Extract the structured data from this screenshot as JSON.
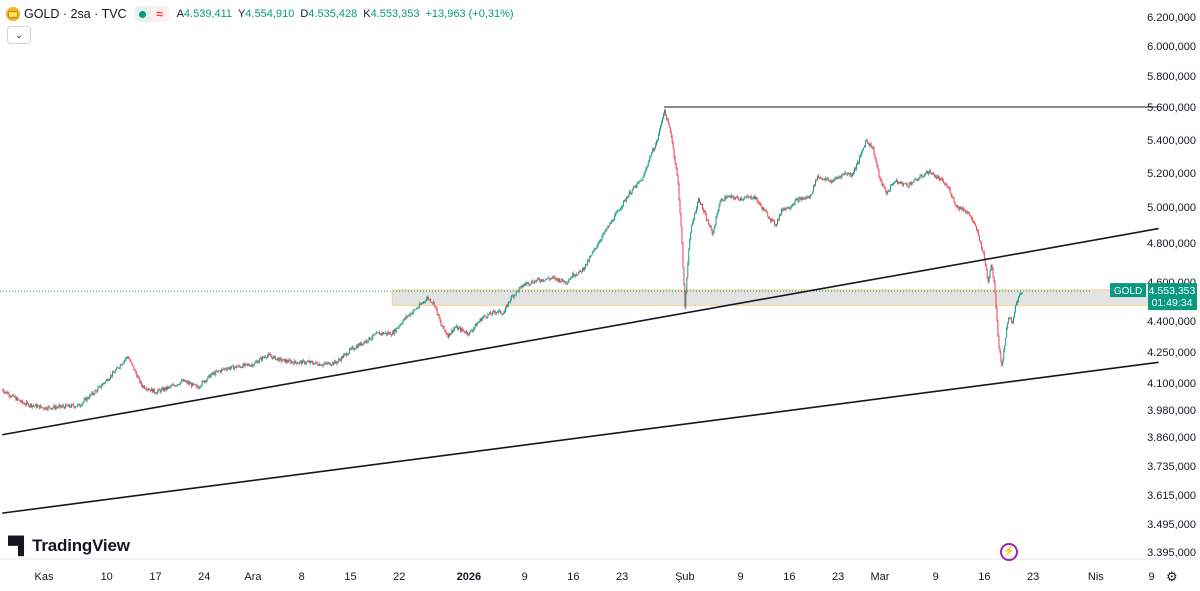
{
  "header": {
    "symbol": "GOLD",
    "interval": "2sa",
    "source": "TVC",
    "title": "GOLD · 2sa · TVC",
    "ohlc": [
      {
        "key": "A",
        "value": "4.539,411"
      },
      {
        "key": "Y",
        "value": "4.554,910"
      },
      {
        "key": "D",
        "value": "4.535,428"
      },
      {
        "key": "K",
        "value": "4.553,353"
      }
    ],
    "change": "+13,963 (+0,31%)"
  },
  "price_label": {
    "symbol": "GOLD",
    "price": "4.553,353",
    "countdown": "01:49:34"
  },
  "logo_text": "TradingView",
  "colors": {
    "up": "#089981",
    "down": "#f23645",
    "zone": "#e3e3e3",
    "zone_border": "#f5d68a",
    "line": "#131722"
  },
  "chart_data": {
    "type": "candlestick",
    "y_ticks": [
      "6.200,000",
      "6.000,000",
      "5.800,000",
      "5.600,000",
      "5.400,000",
      "5.200,000",
      "5.000,000",
      "4.800,000",
      "4.600,000",
      "4.400,000",
      "4.250,000",
      "4.100,000",
      "3.980,000",
      "3.860,000",
      "3.735,000",
      "3.615,000",
      "3.495,000",
      "3.395,000"
    ],
    "y_tick_values": [
      6200,
      6000,
      5800,
      5600,
      5400,
      5200,
      5000,
      4800,
      4600,
      4400,
      4250,
      4100,
      3980,
      3860,
      3735,
      3615,
      3495,
      3395
    ],
    "x_ticks": [
      {
        "label": "Kas",
        "day": 0
      },
      {
        "label": "10",
        "day": 9
      },
      {
        "label": "17",
        "day": 16
      },
      {
        "label": "24",
        "day": 23
      },
      {
        "label": "Ara",
        "day": 30
      },
      {
        "label": "8",
        "day": 37
      },
      {
        "label": "15",
        "day": 44
      },
      {
        "label": "22",
        "day": 51
      },
      {
        "label": "2026",
        "day": 61
      },
      {
        "label": "9",
        "day": 69
      },
      {
        "label": "16",
        "day": 76
      },
      {
        "label": "23",
        "day": 83
      },
      {
        "label": "Şub",
        "day": 92
      },
      {
        "label": "9",
        "day": 100
      },
      {
        "label": "16",
        "day": 107
      },
      {
        "label": "23",
        "day": 114
      },
      {
        "label": "Mar",
        "day": 120
      },
      {
        "label": "9",
        "day": 128
      },
      {
        "label": "16",
        "day": 135
      },
      {
        "label": "23",
        "day": 142
      },
      {
        "label": "Nis",
        "day": 151
      },
      {
        "label": "9",
        "day": 159
      }
    ],
    "x_start_day": -6,
    "x_end_day": 145,
    "price_path": [
      [
        -6,
        4070
      ],
      [
        -3,
        4010
      ],
      [
        0,
        3990
      ],
      [
        3,
        3995
      ],
      [
        5,
        4000
      ],
      [
        8,
        4080
      ],
      [
        10,
        4150
      ],
      [
        12,
        4230
      ],
      [
        13,
        4160
      ],
      [
        14,
        4090
      ],
      [
        16,
        4060
      ],
      [
        18,
        4080
      ],
      [
        20,
        4110
      ],
      [
        22,
        4080
      ],
      [
        24,
        4140
      ],
      [
        26,
        4170
      ],
      [
        28,
        4180
      ],
      [
        30,
        4190
      ],
      [
        32,
        4235
      ],
      [
        34,
        4210
      ],
      [
        36,
        4200
      ],
      [
        38,
        4200
      ],
      [
        40,
        4190
      ],
      [
        42,
        4200
      ],
      [
        44,
        4260
      ],
      [
        46,
        4300
      ],
      [
        48,
        4340
      ],
      [
        50,
        4340
      ],
      [
        52,
        4420
      ],
      [
        54,
        4480
      ],
      [
        55,
        4520
      ],
      [
        56,
        4490
      ],
      [
        57,
        4380
      ],
      [
        58,
        4330
      ],
      [
        59,
        4370
      ],
      [
        61,
        4340
      ],
      [
        63,
        4420
      ],
      [
        65,
        4450
      ],
      [
        66,
        4440
      ],
      [
        67,
        4520
      ],
      [
        69,
        4590
      ],
      [
        71,
        4610
      ],
      [
        73,
        4620
      ],
      [
        75,
        4600
      ],
      [
        76,
        4640
      ],
      [
        77,
        4650
      ],
      [
        78,
        4700
      ],
      [
        80,
        4830
      ],
      [
        82,
        4950
      ],
      [
        84,
        5080
      ],
      [
        86,
        5170
      ],
      [
        87,
        5300
      ],
      [
        88,
        5390
      ],
      [
        89,
        5580
      ],
      [
        90,
        5440
      ],
      [
        91,
        5150
      ],
      [
        91.5,
        4850
      ],
      [
        92,
        4470
      ],
      [
        92.5,
        4750
      ],
      [
        93,
        4900
      ],
      [
        94,
        5050
      ],
      [
        95,
        4940
      ],
      [
        96,
        4850
      ],
      [
        97,
        5030
      ],
      [
        98,
        5060
      ],
      [
        100,
        5050
      ],
      [
        102,
        5060
      ],
      [
        103,
        5000
      ],
      [
        104,
        4950
      ],
      [
        105,
        4900
      ],
      [
        106,
        4990
      ],
      [
        107,
        5000
      ],
      [
        108,
        5040
      ],
      [
        110,
        5060
      ],
      [
        111,
        5180
      ],
      [
        113,
        5150
      ],
      [
        115,
        5200
      ],
      [
        116,
        5190
      ],
      [
        117,
        5280
      ],
      [
        118,
        5400
      ],
      [
        119,
        5350
      ],
      [
        120,
        5160
      ],
      [
        121,
        5080
      ],
      [
        122,
        5150
      ],
      [
        124,
        5130
      ],
      [
        126,
        5180
      ],
      [
        127,
        5210
      ],
      [
        129,
        5150
      ],
      [
        130,
        5100
      ],
      [
        131,
        5000
      ],
      [
        132,
        4990
      ],
      [
        133,
        4950
      ],
      [
        134,
        4860
      ],
      [
        135,
        4720
      ],
      [
        135.5,
        4600
      ],
      [
        136,
        4700
      ],
      [
        136.5,
        4560
      ],
      [
        137,
        4300
      ],
      [
        137.5,
        4180
      ],
      [
        138,
        4310
      ],
      [
        138.5,
        4430
      ],
      [
        139,
        4380
      ],
      [
        139.5,
        4480
      ],
      [
        140,
        4540
      ],
      [
        140.5,
        4553
      ]
    ],
    "support_zone": {
      "from_day": 50,
      "to_day": 163,
      "low": 4480,
      "high": 4560
    },
    "lines": [
      {
        "from": [
          -6,
          3870
        ],
        "to": [
          160,
          4880
        ]
      },
      {
        "from": [
          -6,
          3540
        ],
        "to": [
          160,
          4200
        ]
      },
      {
        "from": [
          89,
          5600
        ],
        "to": [
          160,
          5600
        ]
      }
    ],
    "current_price": 4553.353,
    "grid": false
  }
}
